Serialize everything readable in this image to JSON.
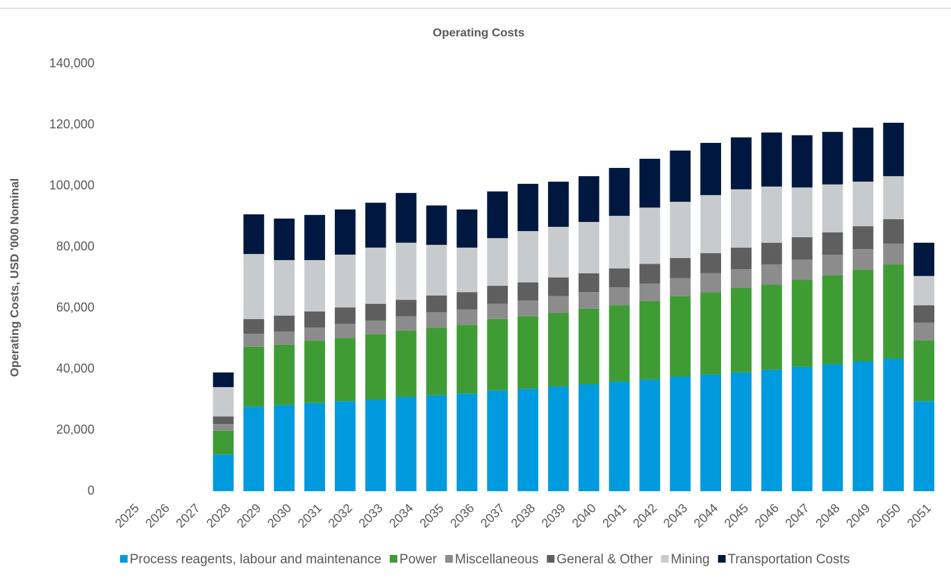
{
  "chart_data": {
    "type": "stacked_bar",
    "title": "Operating Costs",
    "y_axis_label": "Operating Costs, USD '000 Nominal",
    "categories": [
      "2025",
      "2026",
      "2027",
      "2028",
      "2029",
      "2030",
      "2031",
      "2032",
      "2033",
      "2034",
      "2035",
      "2036",
      "2037",
      "2038",
      "2039",
      "2040",
      "2041",
      "2042",
      "2043",
      "2044",
      "2045",
      "2046",
      "2047",
      "2048",
      "2049",
      "2050",
      "2051"
    ],
    "series": [
      {
        "name": "Process reagents, labour and maintenance",
        "color": "#009ade",
        "values": [
          0,
          0,
          0,
          12000,
          27700,
          28200,
          28900,
          29500,
          30000,
          30900,
          31400,
          32000,
          33000,
          33600,
          34300,
          35000,
          35900,
          36600,
          37500,
          38200,
          38900,
          39800,
          40700,
          41600,
          42500,
          43400,
          29500
        ]
      },
      {
        "name": "Power",
        "color": "#3f9c35",
        "values": [
          0,
          0,
          0,
          7800,
          19600,
          19800,
          20400,
          20700,
          21400,
          21600,
          22200,
          22500,
          23400,
          23700,
          24100,
          24800,
          25000,
          25700,
          26400,
          27000,
          27700,
          27900,
          28600,
          29100,
          30000,
          30900,
          20000
        ]
      },
      {
        "name": "Miscellaneous",
        "color": "#8c8c8c",
        "values": [
          0,
          0,
          0,
          2200,
          4300,
          4300,
          4300,
          4600,
          4500,
          4800,
          5000,
          5000,
          5000,
          5200,
          5500,
          5400,
          5900,
          5700,
          5900,
          6200,
          6100,
          6600,
          6600,
          6800,
          6800,
          6800,
          5700
        ]
      },
      {
        "name": "General & Other",
        "color": "#5f5f5f",
        "values": [
          0,
          0,
          0,
          2500,
          4800,
          5200,
          5300,
          5400,
          5500,
          5400,
          5500,
          5700,
          5900,
          5900,
          6100,
          6200,
          6200,
          6500,
          6600,
          6600,
          7100,
          7100,
          7300,
          7300,
          7500,
          8000,
          5700
        ]
      },
      {
        "name": "Mining",
        "color": "#c8cbcd",
        "values": [
          0,
          0,
          0,
          9600,
          21300,
          18200,
          16800,
          17300,
          18400,
          18700,
          16600,
          14600,
          15600,
          16800,
          16600,
          16800,
          17200,
          18400,
          18400,
          19000,
          19100,
          18400,
          16300,
          15700,
          14600,
          14100,
          9600
        ]
      },
      {
        "name": "Transportation Costs",
        "color": "#00183f",
        "values": [
          0,
          0,
          0,
          4800,
          13000,
          13600,
          14800,
          14800,
          14700,
          16300,
          12900,
          12500,
          15300,
          15500,
          14800,
          15000,
          15700,
          16000,
          16800,
          17100,
          17000,
          17700,
          17100,
          17200,
          17700,
          17500,
          10900
        ]
      }
    ],
    "ylim": [
      0,
      140000
    ],
    "yticks": [
      0,
      {
        "value": 20000,
        "label": "20,000"
      },
      {
        "value": 40000,
        "label": "40,000"
      },
      {
        "value": 60000,
        "label": "60,000"
      },
      {
        "value": 80000,
        "label": "80,000"
      },
      {
        "value": 100000,
        "label": "100,000"
      },
      {
        "value": 120000,
        "label": "120,000"
      },
      {
        "value": 140000,
        "label": "140,000"
      }
    ],
    "grid": false,
    "legend": "bottom"
  }
}
